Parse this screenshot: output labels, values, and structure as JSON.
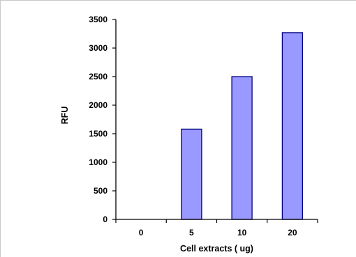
{
  "chart_data": {
    "type": "bar",
    "title": "",
    "categories": [
      "0",
      "5",
      "10",
      "20"
    ],
    "values": [
      0,
      1580,
      2500,
      3270
    ],
    "xlabel": "Cell extracts ( ug)",
    "ylabel": "RFU",
    "ylim": [
      0,
      3500
    ],
    "yticks": [
      0,
      500,
      1000,
      1500,
      2000,
      2500,
      3000,
      3500
    ],
    "bar_color": "#9999ff",
    "bar_edge_color": "#000080",
    "grid": false,
    "legend": "none"
  }
}
